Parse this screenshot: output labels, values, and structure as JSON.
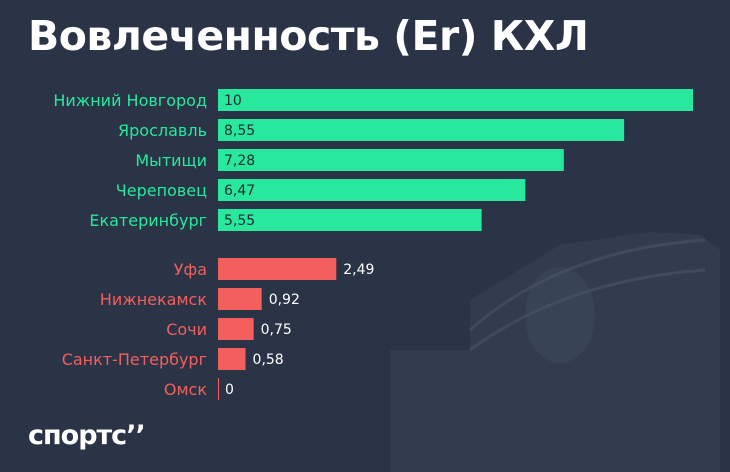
{
  "title": "Вовлеченность (Er) КХЛ",
  "logo_text": "спортс’’",
  "colors": {
    "background": "#2b3446",
    "top_bar": "#27e89c",
    "top_label": "#27e89c",
    "bottom_bar": "#f25f5c",
    "bottom_label": "#f25f5c",
    "bottom_value_text": "#ffffff",
    "top_value_text": "#1d2a33"
  },
  "chart_data": {
    "type": "bar",
    "orientation": "horizontal",
    "xlim": [
      0,
      10
    ],
    "grid": false,
    "groups": [
      {
        "categories": [
          "Нижний Новгород",
          "Ярославль",
          "Мытищи",
          "Череповец",
          "Екатеринбург"
        ],
        "values": [
          10,
          8.55,
          7.28,
          6.47,
          5.55
        ],
        "value_labels": [
          "10",
          "8,55",
          "7,28",
          "6,47",
          "5,55"
        ]
      },
      {
        "categories": [
          "Уфа",
          "Нижнекамск",
          "Сочи",
          "Санкт-Петербург",
          "Омск"
        ],
        "values": [
          2.49,
          0.92,
          0.75,
          0.58,
          0
        ],
        "value_labels": [
          "2,49",
          "0,92",
          "0,75",
          "0,58",
          "0"
        ]
      }
    ]
  }
}
